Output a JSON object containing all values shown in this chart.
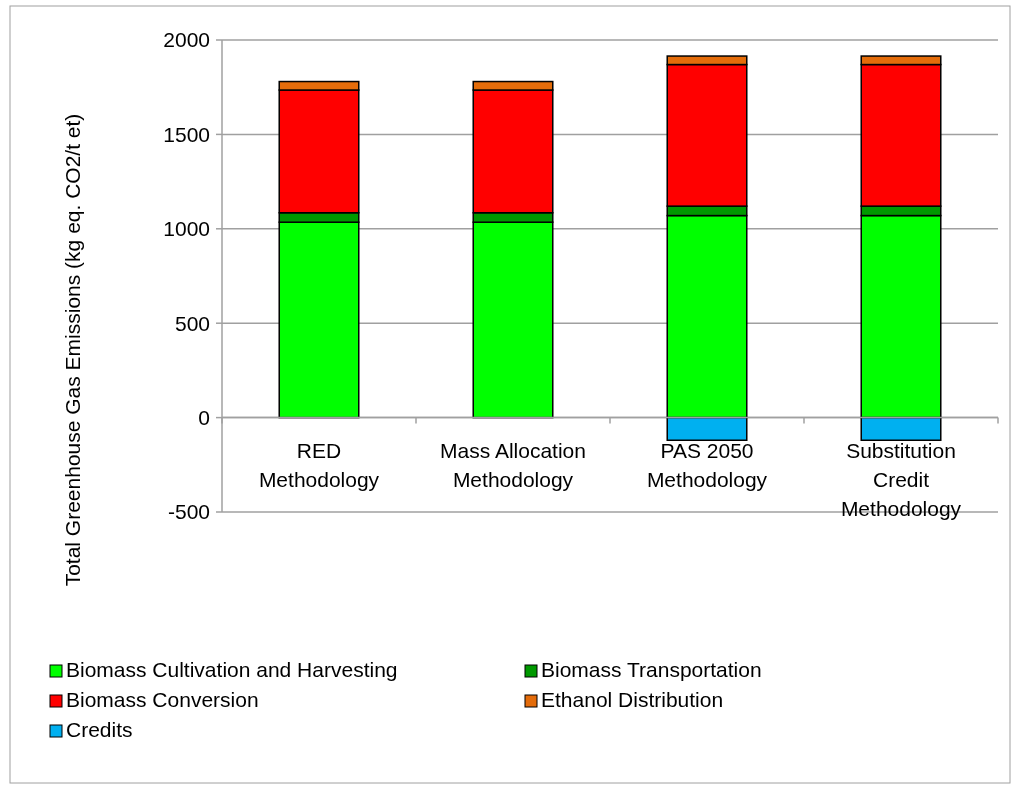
{
  "chart_data": {
    "type": "bar",
    "stacked": true,
    "categories": [
      "RED\nMethodology",
      "Mass Allocation\nMethodology",
      "PAS 2050\nMethodology",
      "Substitution\nCredit\nMethodology"
    ],
    "series": [
      {
        "name": "Biomass Cultivation and Harvesting",
        "color": "#00ff00",
        "values": [
          1035,
          1035,
          1070,
          1070
        ]
      },
      {
        "name": "Biomass Transportation",
        "color": "#009900",
        "values": [
          50,
          50,
          50,
          50
        ]
      },
      {
        "name": "Biomass Conversion",
        "color": "#ff0000",
        "values": [
          650,
          650,
          750,
          750
        ]
      },
      {
        "name": "Ethanol Distribution",
        "color": "#e46c0a",
        "values": [
          45,
          45,
          45,
          45
        ]
      },
      {
        "name": "Credits",
        "color": "#00b0f0",
        "values": [
          0,
          0,
          -120,
          -120
        ]
      }
    ],
    "ylabel": "Total Greenhouse Gas Emissions (kg eq. CO2/t et)",
    "ylim": [
      -500,
      2000
    ],
    "yticks": [
      -500,
      0,
      500,
      1000,
      1500,
      2000
    ],
    "grid": "y",
    "legend": "bottom"
  }
}
